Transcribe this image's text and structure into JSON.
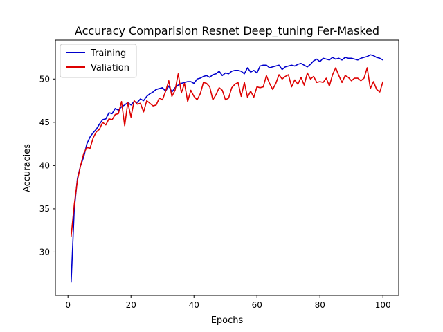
{
  "chart_data": {
    "type": "line",
    "title": "Accuracy Comparision Resnet Deep_tuning Fer-Masked",
    "xlabel": "Epochs",
    "ylabel": "Accuracies",
    "xlim": [
      -4,
      105
    ],
    "ylim": [
      25,
      54.5
    ],
    "xticks": [
      0,
      20,
      40,
      60,
      80,
      100
    ],
    "yticks": [
      30,
      35,
      40,
      45,
      50
    ],
    "grid": false,
    "legend": "top-left",
    "series": [
      {
        "name": "Training",
        "color": "#0000cc",
        "x": [
          1,
          2,
          3,
          4,
          5,
          6,
          7,
          8,
          9,
          10,
          11,
          12,
          13,
          14,
          15,
          16,
          17,
          18,
          19,
          20,
          21,
          22,
          23,
          24,
          25,
          26,
          27,
          28,
          29,
          30,
          31,
          32,
          33,
          34,
          35,
          36,
          37,
          38,
          39,
          40,
          41,
          42,
          43,
          44,
          45,
          46,
          47,
          48,
          49,
          50,
          51,
          52,
          53,
          54,
          55,
          56,
          57,
          58,
          59,
          60,
          61,
          62,
          63,
          64,
          65,
          66,
          67,
          68,
          69,
          70,
          71,
          72,
          73,
          74,
          75,
          76,
          77,
          78,
          79,
          80,
          81,
          82,
          83,
          84,
          85,
          86,
          87,
          88,
          89,
          90,
          91,
          92,
          93,
          94,
          95,
          96,
          97,
          98,
          99,
          100
        ],
        "values": [
          26.5,
          35.0,
          38.5,
          40.0,
          41.0,
          42.5,
          43.3,
          43.8,
          44.2,
          44.8,
          45.3,
          45.4,
          46.1,
          46.0,
          46.6,
          46.4,
          46.8,
          47.0,
          47.3,
          47.0,
          47.4,
          47.3,
          47.7,
          47.5,
          48.0,
          48.3,
          48.5,
          48.8,
          48.9,
          49.0,
          48.6,
          49.2,
          48.5,
          49.0,
          49.3,
          49.5,
          49.6,
          49.7,
          49.7,
          49.5,
          50.0,
          50.1,
          50.3,
          50.4,
          50.2,
          50.5,
          50.6,
          50.9,
          50.4,
          50.7,
          50.6,
          50.9,
          51.0,
          51.0,
          50.9,
          50.6,
          51.3,
          50.8,
          51.0,
          50.7,
          51.5,
          51.6,
          51.6,
          51.3,
          51.4,
          51.5,
          51.6,
          51.1,
          51.4,
          51.5,
          51.6,
          51.5,
          51.7,
          51.8,
          51.6,
          51.4,
          51.7,
          52.1,
          52.3,
          52.0,
          52.4,
          52.3,
          52.2,
          52.5,
          52.3,
          52.4,
          52.2,
          52.5,
          52.4,
          52.4,
          52.3,
          52.2,
          52.4,
          52.5,
          52.6,
          52.8,
          52.7,
          52.5,
          52.4,
          52.2
        ]
      },
      {
        "name": "Valiation",
        "color": "#dd0000",
        "x": [
          1,
          2,
          3,
          4,
          5,
          6,
          7,
          8,
          9,
          10,
          11,
          12,
          13,
          14,
          15,
          16,
          17,
          18,
          19,
          20,
          21,
          22,
          23,
          24,
          25,
          26,
          27,
          28,
          29,
          30,
          31,
          32,
          33,
          34,
          35,
          36,
          37,
          38,
          39,
          40,
          41,
          42,
          43,
          44,
          45,
          46,
          47,
          48,
          49,
          50,
          51,
          52,
          53,
          54,
          55,
          56,
          57,
          58,
          59,
          60,
          61,
          62,
          63,
          64,
          65,
          66,
          67,
          68,
          69,
          70,
          71,
          72,
          73,
          74,
          75,
          76,
          77,
          78,
          79,
          80,
          81,
          82,
          83,
          84,
          85,
          86,
          87,
          88,
          89,
          90,
          91,
          92,
          93,
          94,
          95,
          96,
          97,
          98,
          99,
          100
        ],
        "values": [
          31.8,
          35.5,
          38.3,
          40.0,
          41.4,
          42.1,
          42.0,
          43.2,
          43.9,
          44.2,
          45.0,
          44.7,
          45.4,
          45.3,
          45.9,
          46.0,
          47.4,
          44.6,
          47.3,
          45.6,
          47.5,
          47.1,
          47.2,
          46.2,
          47.5,
          47.2,
          46.9,
          47.0,
          47.8,
          47.6,
          48.6,
          49.8,
          48.0,
          48.7,
          50.6,
          48.4,
          49.5,
          47.4,
          48.7,
          48.0,
          47.6,
          48.3,
          49.6,
          49.5,
          49.1,
          47.6,
          48.2,
          49.0,
          48.7,
          47.6,
          47.8,
          49.0,
          49.4,
          49.6,
          48.0,
          49.6,
          47.9,
          48.6,
          47.9,
          49.1,
          49.0,
          49.1,
          50.4,
          49.5,
          48.8,
          49.5,
          50.5,
          50.0,
          50.3,
          50.5,
          49.1,
          49.9,
          49.4,
          50.2,
          49.3,
          50.7,
          50.0,
          50.3,
          49.6,
          49.7,
          49.6,
          50.1,
          49.2,
          50.5,
          51.3,
          50.4,
          49.6,
          50.4,
          50.2,
          49.8,
          50.1,
          50.1,
          49.8,
          50.1,
          51.3,
          48.9,
          49.7,
          48.8,
          48.5,
          49.7
        ]
      }
    ]
  }
}
